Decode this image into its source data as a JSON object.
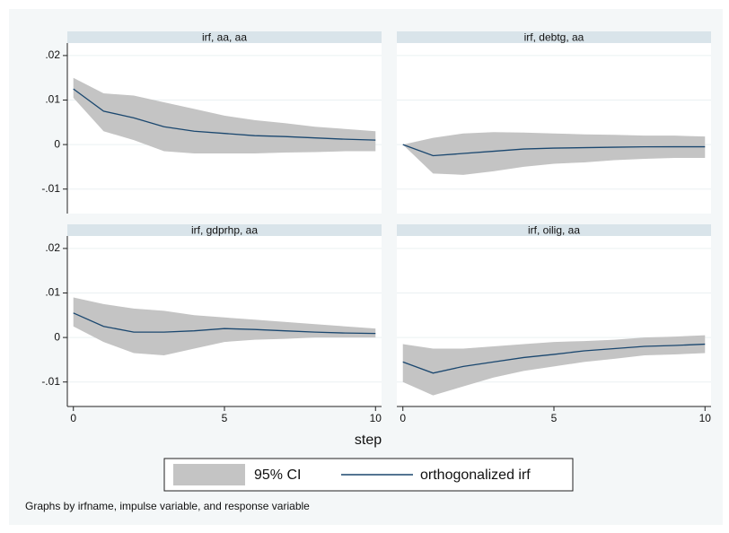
{
  "chart_data": [
    {
      "type": "line",
      "title": "irf, aa, aa",
      "x": [
        0,
        1,
        2,
        3,
        4,
        5,
        6,
        7,
        8,
        9,
        10
      ],
      "values": [
        0.0125,
        0.0075,
        0.006,
        0.004,
        0.003,
        0.0025,
        0.002,
        0.0018,
        0.0015,
        0.0012,
        0.001
      ],
      "ci_upper": [
        0.015,
        0.0115,
        0.011,
        0.0095,
        0.008,
        0.0065,
        0.0055,
        0.0048,
        0.004,
        0.0035,
        0.003
      ],
      "ci_lower": [
        0.0105,
        0.003,
        0.001,
        -0.0015,
        -0.002,
        -0.002,
        -0.002,
        -0.0018,
        -0.0017,
        -0.0015,
        -0.0015
      ],
      "xlim": [
        -0.2,
        10.2
      ],
      "ylim": [
        -0.0155,
        0.0228
      ],
      "yticks": [
        {
          "value": 0.02,
          "label": ".02"
        },
        {
          "value": 0.01,
          "label": ".01"
        },
        0,
        {
          "value": -0.01,
          "label": "-.01"
        }
      ]
    },
    {
      "type": "line",
      "title": "irf, debtg, aa",
      "x": [
        0,
        1,
        2,
        3,
        4,
        5,
        6,
        7,
        8,
        9,
        10
      ],
      "values": [
        0,
        -0.0025,
        -0.002,
        -0.0015,
        -0.001,
        -0.0008,
        -0.0007,
        -0.0006,
        -0.0005,
        -0.0005,
        -0.0005
      ],
      "ci_upper": [
        0,
        0.0015,
        0.0025,
        0.0028,
        0.0027,
        0.0025,
        0.0023,
        0.0022,
        0.002,
        0.002,
        0.0018
      ],
      "ci_lower": [
        0,
        -0.0065,
        -0.0068,
        -0.006,
        -0.005,
        -0.0043,
        -0.004,
        -0.0035,
        -0.0032,
        -0.003,
        -0.003
      ],
      "xlim": [
        -0.2,
        10.2
      ],
      "ylim": [
        -0.0155,
        0.0228
      ]
    },
    {
      "type": "line",
      "title": "irf, gdprhp, aa",
      "x": [
        0,
        1,
        2,
        3,
        4,
        5,
        6,
        7,
        8,
        9,
        10
      ],
      "values": [
        0.0055,
        0.0025,
        0.0012,
        0.0012,
        0.0015,
        0.002,
        0.0018,
        0.0015,
        0.0012,
        0.001,
        0.0009
      ],
      "ci_upper": [
        0.009,
        0.0075,
        0.0065,
        0.006,
        0.005,
        0.0045,
        0.004,
        0.0035,
        0.003,
        0.0025,
        0.002
      ],
      "ci_lower": [
        0.0025,
        -0.001,
        -0.0035,
        -0.004,
        -0.0025,
        -0.001,
        -0.0005,
        -0.0003,
        0,
        0,
        0
      ],
      "xlim": [
        -0.2,
        10.2
      ],
      "ylim": [
        -0.0155,
        0.0228
      ],
      "xticks": [
        0,
        5,
        10
      ],
      "yticks": [
        {
          "value": 0.02,
          "label": ".02"
        },
        {
          "value": 0.01,
          "label": ".01"
        },
        0,
        {
          "value": -0.01,
          "label": "-.01"
        }
      ]
    },
    {
      "type": "line",
      "title": "irf, oilig, aa",
      "x": [
        0,
        1,
        2,
        3,
        4,
        5,
        6,
        7,
        8,
        9,
        10
      ],
      "values": [
        -0.0055,
        -0.008,
        -0.0065,
        -0.0055,
        -0.0045,
        -0.0038,
        -0.003,
        -0.0025,
        -0.002,
        -0.0018,
        -0.0015
      ],
      "ci_upper": [
        -0.0015,
        -0.0025,
        -0.0025,
        -0.002,
        -0.0015,
        -0.001,
        -0.0008,
        -0.0005,
        0,
        0.0002,
        0.0005
      ],
      "ci_lower": [
        -0.01,
        -0.013,
        -0.011,
        -0.009,
        -0.0075,
        -0.0065,
        -0.0055,
        -0.0048,
        -0.004,
        -0.0038,
        -0.0035
      ],
      "xlim": [
        -0.2,
        10.2
      ],
      "ylim": [
        -0.0155,
        0.0228
      ],
      "xticks": [
        0,
        5,
        10
      ]
    }
  ],
  "xlabel": "step",
  "legend": [
    {
      "name": "95% CI",
      "color": "#c4c4c4"
    },
    {
      "name": "orthogonalized irf",
      "color": "#1a476f"
    }
  ],
  "note": "Graphs by irfname, impulse variable, and response variable"
}
